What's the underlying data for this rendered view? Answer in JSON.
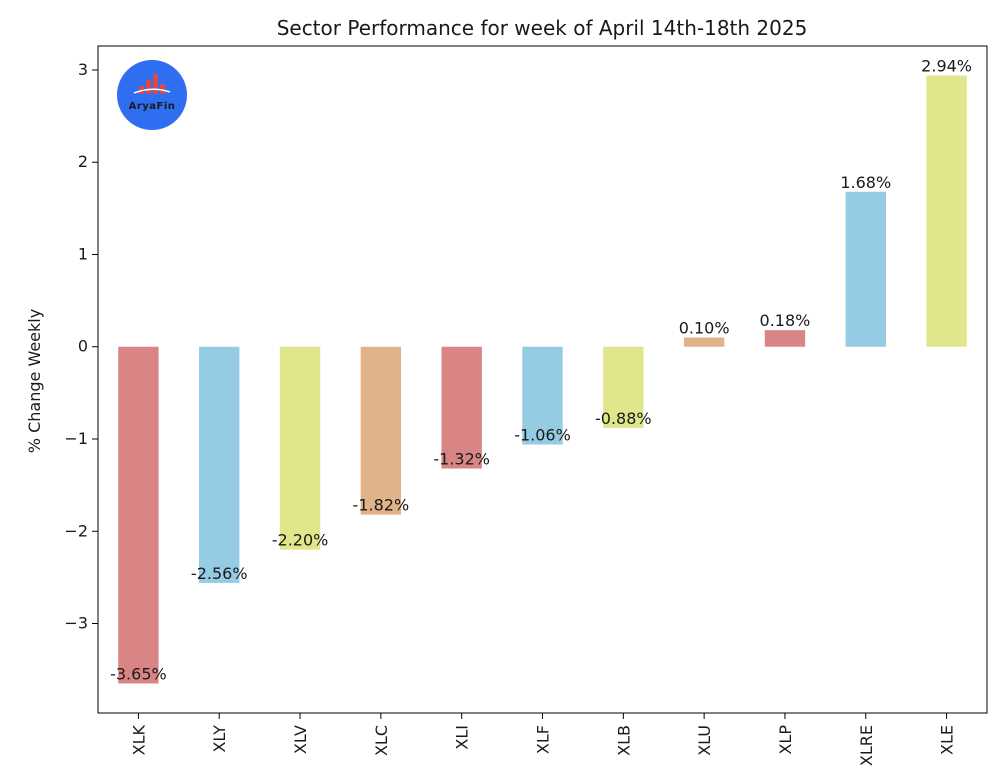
{
  "chart_data": {
    "type": "bar",
    "title": "Sector Performance for week of April 14th-18th 2025",
    "xlabel": "",
    "ylabel": "% Change Weekly",
    "categories": [
      "XLK",
      "XLY",
      "XLV",
      "XLC",
      "XLI",
      "XLF",
      "XLB",
      "XLU",
      "XLP",
      "XLRE",
      "XLE"
    ],
    "values": [
      -3.65,
      -2.56,
      -2.2,
      -1.82,
      -1.32,
      -1.06,
      -0.88,
      0.1,
      0.18,
      1.68,
      2.94
    ],
    "data_labels": [
      "-3.65%",
      "-2.56%",
      "-2.20%",
      "-1.82%",
      "-1.32%",
      "-1.06%",
      "-0.88%",
      "0.10%",
      "0.18%",
      "1.68%",
      "2.94%"
    ],
    "bar_colors": [
      "#d98585",
      "#95cbe3",
      "#e0e68b",
      "#e0b38a",
      "#d98585",
      "#95cbe3",
      "#e0e68b",
      "#e0b38a",
      "#d98585",
      "#95cbe3",
      "#e0e68b"
    ],
    "ylim": [
      -3.97,
      3.26
    ],
    "yticks": [
      -3,
      -2,
      -1,
      0,
      1,
      2,
      3
    ],
    "ytick_labels": [
      "−3",
      "−2",
      "−1",
      "0",
      "1",
      "2",
      "3"
    ],
    "grid": false,
    "legend": "none"
  },
  "logo": {
    "text": "AryaFin",
    "color": "#2f6ef0"
  }
}
